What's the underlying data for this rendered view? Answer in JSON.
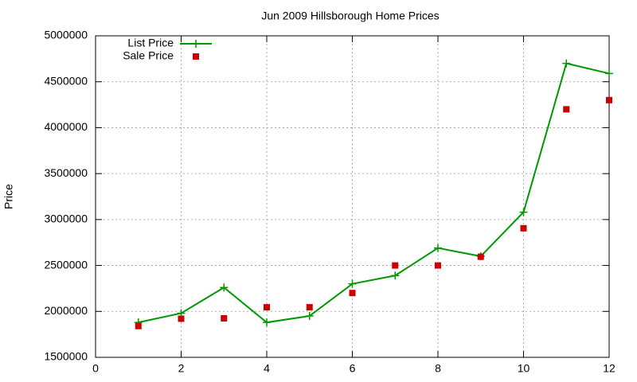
{
  "chart_data": {
    "type": "line",
    "title": "Jun 2009 Hillsborough Home Prices",
    "y_label": "Price",
    "x": [
      1,
      2,
      3,
      4,
      5,
      6,
      7,
      8,
      9,
      10,
      11,
      12
    ],
    "series": [
      {
        "name": "List Price",
        "color": "#009900",
        "style": "linespoints",
        "values": [
          1880000,
          1980000,
          2260000,
          1880000,
          1950000,
          2300000,
          2390000,
          2690000,
          2600000,
          3080000,
          4700000,
          4590000
        ]
      },
      {
        "name": "Sale Price",
        "color": "#cc0000",
        "style": "points",
        "values": [
          1840000,
          1920000,
          1925000,
          2045000,
          2045000,
          2200000,
          2500000,
          2500000,
          2595000,
          2905000,
          4200000,
          4300000
        ]
      }
    ],
    "xlim": [
      0,
      12
    ],
    "xticks": [
      0,
      2,
      4,
      6,
      8,
      10,
      12
    ],
    "ylim": [
      1500000,
      5000000
    ],
    "yticks": [
      1500000,
      2000000,
      2500000,
      3000000,
      3500000,
      4000000,
      4500000,
      5000000
    ],
    "grid": true,
    "legend": "top-left"
  }
}
